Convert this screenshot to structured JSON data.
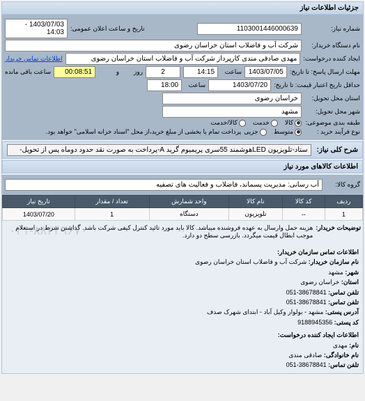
{
  "panel_title": "جزئیات اطلاعات نیاز",
  "labels": {
    "request_no": "شماره نیاز:",
    "org_name": "نام دستگاه خریدار:",
    "creator": "ایجاد کننده درخواست:",
    "contact_link": "اطلاعات تماس خریدار",
    "deadline_reply": "مهلت ارسال پاسخ: تا تاریخ:",
    "hour": "ساعت",
    "and": "و",
    "day": "روز",
    "remaining": "ساعت باقی مانده",
    "price_validity": "حداقل تاریخ اعتبار قیمت: تا تاریخ:",
    "delivery_province": "استان محل تحویل:",
    "delivery_city": "شهر محل تحویل:",
    "subject_category": "طبقه بندی موضوعی:",
    "purchase_type": "نوع فرآیند خرید :",
    "purchase_note": "پرداخت تمام یا بخشی از مبلغ خرید،از محل \"اسناد خزانه اسلامی\" خواهد بود.",
    "announce_datetime": "تاریخ و ساعت اعلان عمومی:"
  },
  "values": {
    "request_no": "1103001446000639",
    "org_name": "شرکت آب و فاضلاب استان خراسان رضوی",
    "creator": "مهدی صادقی مندی کارپرداز شرکت آب و فاضلاب استان خراسان رضوی",
    "deadline_date": "1403/07/05",
    "deadline_hour": "14:15",
    "days_left": "2",
    "time_left": "00:08:51",
    "price_validity_date": "1403/07/20",
    "price_validity_hour": "18:00",
    "province": "خراسان رضوی",
    "city": "مشهد",
    "announce_datetime": "1403/07/03 - 14:03"
  },
  "subject_options": [
    {
      "label": "کالا",
      "selected": true
    },
    {
      "label": "خدمت",
      "selected": false
    },
    {
      "label": "کالا/خدمت",
      "selected": false
    }
  ],
  "purchase_options": [
    {
      "label": "متوسط",
      "selected": true
    },
    {
      "label": "جزیی",
      "selected": false
    }
  ],
  "need_title_section": {
    "label": "شرح کلی نیاز:",
    "value": "ستاد-تلویزیون LEDهوشمند 55سری پریمیوم گرید A-پرداخت به صورت نقد حدود دوماه پس از تحویل-"
  },
  "goods_section_title": "اطلاعات کالاهای مورد نیاز",
  "goods_group": {
    "label": "گروه کالا:",
    "value": "آب رسانی: مدیریت پسماند، فاضلاب و فعالیت های تصفیه"
  },
  "table": {
    "headers": [
      "ردیف",
      "کد کالا",
      "نام کالا",
      "واحد شمارش",
      "تعداد / مقدار",
      "تاریخ نیاز"
    ],
    "rows": [
      [
        "1",
        "--",
        "تلویزیون",
        "دستگاه",
        "1",
        "1403/07/20"
      ]
    ]
  },
  "buyer_note": {
    "label": "توضیحات خریدار:",
    "text": "هزینه حمل وارسال به عهده فروشنده میباشد. کالا باید مورد تائید کنترل کیفی شرکت باشد. گذاشتن شرط در استعلام موجب ابطال قیمت میگردد. بازرسی سطح دو دارد."
  },
  "watermark": "۰۲۱-۸۸۳۴۹۶۷۰",
  "contact": {
    "header": "اطلاعات تماس سازمان خریدار:",
    "org_label": "نام سازمان خریدار:",
    "org": "شرکت آب و فاضلاب استان خراسان رضوی",
    "city_label": "شهر:",
    "city": "مشهد",
    "province_label": "استان:",
    "province": "خراسان رضوی",
    "phone_label": "تلفن تماس:",
    "phone": "38678841-051",
    "fax_label": "تلفن تماس:",
    "fax": "38678841-051",
    "address_label": "آدرس پستی:",
    "address": "مشهد - بولوار وکیل آباد - ابتدای شهرک صدف",
    "postal_label": "کد پستی:",
    "postal": "9188945356",
    "creator_header": "اطلاعات ایجاد کننده درخواست:",
    "name_label": "نام:",
    "name": "مهدی",
    "family_label": "نام خانوادگی:",
    "family": "صادقی مندی",
    "cphone_label": "تلفن تماس:",
    "cphone": "38678841-051"
  }
}
